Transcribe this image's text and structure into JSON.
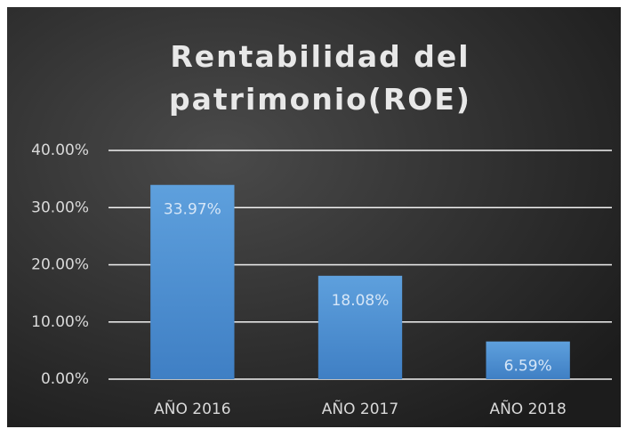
{
  "chart_data": {
    "type": "bar",
    "title": "Rentabilidad del patrimonio(ROE)",
    "categories": [
      "AÑO 2016",
      "AÑO 2017",
      "AÑO 2018"
    ],
    "values": [
      33.97,
      18.08,
      6.59
    ],
    "value_labels": [
      "33.97%",
      "18.08%",
      "6.59%"
    ],
    "color": "#4f8fd2",
    "ylim": [
      0,
      40
    ],
    "yticks": [
      {
        "value": 0,
        "label": "0.00%"
      },
      {
        "value": 10,
        "label": "10.00%"
      },
      {
        "value": 20,
        "label": "20.00%"
      },
      {
        "value": 30,
        "label": "30.00%"
      },
      {
        "value": 40,
        "label": "40.00%"
      }
    ],
    "grid": true
  }
}
